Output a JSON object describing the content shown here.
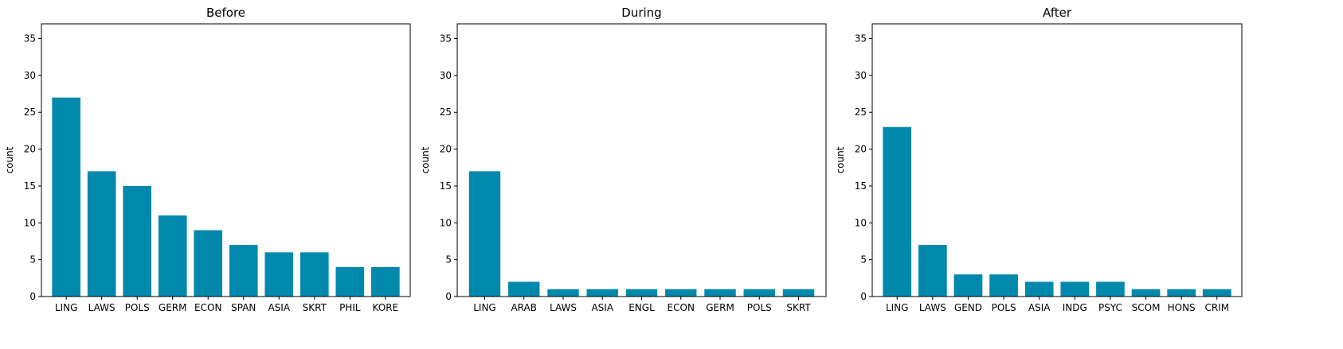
{
  "chart_data": [
    {
      "type": "bar",
      "title": "Before",
      "ylabel": "count",
      "xlabel": "",
      "ylim": [
        0,
        37
      ],
      "yticks": [
        0,
        5,
        10,
        15,
        20,
        25,
        30,
        35
      ],
      "categories": [
        "LING",
        "LAWS",
        "POLS",
        "GERM",
        "ECON",
        "SPAN",
        "ASIA",
        "SKRT",
        "PHIL",
        "KORE"
      ],
      "values": [
        27,
        17,
        15,
        11,
        9,
        7,
        6,
        6,
        4,
        4
      ],
      "color": "#0088ad"
    },
    {
      "type": "bar",
      "title": "During",
      "ylabel": "count",
      "xlabel": "",
      "ylim": [
        0,
        37
      ],
      "yticks": [
        0,
        5,
        10,
        15,
        20,
        25,
        30,
        35
      ],
      "categories": [
        "LING",
        "ARAB",
        "LAWS",
        "ASIA",
        "ENGL",
        "ECON",
        "GERM",
        "POLS",
        "SKRT"
      ],
      "values": [
        17,
        2,
        1,
        1,
        1,
        1,
        1,
        1,
        1
      ],
      "color": "#0088ad"
    },
    {
      "type": "bar",
      "title": "After",
      "ylabel": "count",
      "xlabel": "",
      "ylim": [
        0,
        37
      ],
      "yticks": [
        0,
        5,
        10,
        15,
        20,
        25,
        30,
        35
      ],
      "categories": [
        "LING",
        "LAWS",
        "GEND",
        "POLS",
        "ASIA",
        "INDG",
        "PSYC",
        "SCOM",
        "HONS",
        "CRIM"
      ],
      "values": [
        23,
        7,
        3,
        3,
        2,
        2,
        2,
        1,
        1,
        1
      ],
      "color": "#0088ad"
    }
  ]
}
